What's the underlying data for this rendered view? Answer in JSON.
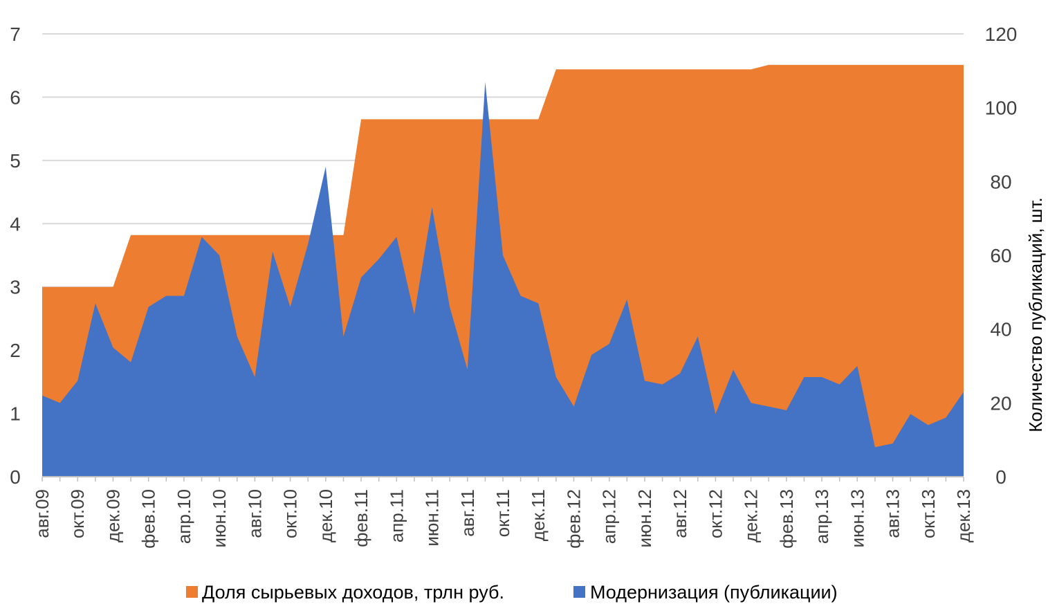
{
  "chart_data": {
    "type": "area",
    "title": "",
    "x": [
      "авг.09",
      "сен.09",
      "окт.09",
      "ноя.09",
      "дек.09",
      "янв.10",
      "фев.10",
      "мар.10",
      "апр.10",
      "май.10",
      "июн.10",
      "июл.10",
      "авг.10",
      "сен.10",
      "окт.10",
      "ноя.10",
      "дек.10",
      "янв.11",
      "фев.11",
      "мар.11",
      "апр.11",
      "май.11",
      "июн.11",
      "июл.11",
      "авг.11",
      "сен.11",
      "окт.11",
      "ноя.11",
      "дек.11",
      "янв.12",
      "фев.12",
      "мар.12",
      "апр.12",
      "май.12",
      "июн.12",
      "июл.12",
      "авг.12",
      "сен.12",
      "окт.12",
      "ноя.12",
      "дек.12",
      "янв.13",
      "фев.13",
      "мар.13",
      "апр.13",
      "май.13",
      "июн.13",
      "июл.13",
      "авг.13",
      "сен.13",
      "окт.13",
      "ноя.13",
      "дек.13"
    ],
    "x_tick_labels": [
      "авг.09",
      "окт.09",
      "дек.09",
      "фев.10",
      "апр.10",
      "июн.10",
      "авг.10",
      "окт.10",
      "дек.10",
      "фев.11",
      "апр.11",
      "июн.11",
      "авг.11",
      "окт.11",
      "дек.11",
      "фев.12",
      "апр.12",
      "июн.12",
      "авг.12",
      "окт.12",
      "дек.12",
      "фев.13",
      "апр.13",
      "июн.13",
      "авг.13",
      "окт.13",
      "дек.13"
    ],
    "y_left": {
      "ylim": [
        0,
        7
      ],
      "ticks": [
        "0",
        "1",
        "2",
        "3",
        "4",
        "5",
        "6",
        "7"
      ]
    },
    "y_right": {
      "ylim": [
        0,
        120
      ],
      "ticks": [
        "0",
        "20",
        "40",
        "60",
        "80",
        "100",
        "120"
      ],
      "label": "Количество публикаций, шт."
    },
    "grid": true,
    "legend_position": "bottom",
    "series": [
      {
        "name": "Доля сырьевых доходов, трлн руб.",
        "axis": "left",
        "color": "#ED7D31",
        "values": [
          3.0,
          3.0,
          3.0,
          3.0,
          3.0,
          3.82,
          3.82,
          3.82,
          3.82,
          3.82,
          3.82,
          3.82,
          3.82,
          3.82,
          3.82,
          3.82,
          3.82,
          3.82,
          5.65,
          5.65,
          5.65,
          5.65,
          5.65,
          5.65,
          5.65,
          5.65,
          5.65,
          5.65,
          5.65,
          6.44,
          6.44,
          6.44,
          6.44,
          6.44,
          6.44,
          6.44,
          6.44,
          6.44,
          6.44,
          6.44,
          6.44,
          6.51,
          6.51,
          6.51,
          6.51,
          6.51,
          6.51,
          6.51,
          6.51,
          6.51,
          6.51,
          6.51,
          6.51
        ]
      },
      {
        "name": "Модернизация (публикации)",
        "axis": "right",
        "color": "#4472C4",
        "values": [
          22,
          20,
          26,
          47,
          35,
          31,
          46,
          49,
          49,
          65,
          60,
          38,
          27,
          61,
          46,
          63,
          84,
          38,
          54,
          59,
          65,
          44,
          73,
          46,
          29,
          107,
          60,
          49,
          47,
          27,
          19,
          33,
          36,
          48,
          26,
          25,
          28,
          38,
          17,
          29,
          20,
          19,
          18,
          27,
          27,
          25,
          30,
          8,
          9,
          17,
          14,
          16,
          23
        ]
      }
    ]
  }
}
